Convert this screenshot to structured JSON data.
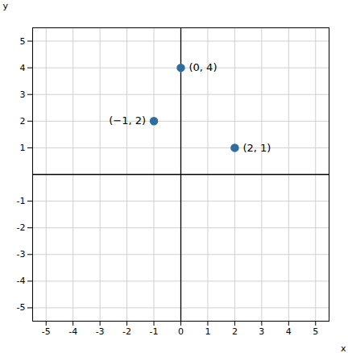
{
  "chart_data": {
    "type": "scatter",
    "xlabel": "x",
    "ylabel": "y",
    "x": [
      0,
      -1,
      2
    ],
    "values": [
      4,
      2,
      1
    ],
    "value_labels": [
      "(0, 4)",
      "(−1, 2)",
      "(2, 1)"
    ],
    "data_labels": true,
    "color": "#2e6d9e",
    "marker": "o",
    "xlim": [
      -5.5,
      5.5
    ],
    "ylim": [
      -5.5,
      5.5
    ],
    "xticks": [
      -5,
      -4,
      -3,
      -2,
      -1,
      0,
      1,
      2,
      3,
      4,
      5
    ],
    "yticks": [
      -5,
      -4,
      -3,
      -2,
      -1,
      1,
      2,
      3,
      4,
      5
    ],
    "grid": true
  }
}
